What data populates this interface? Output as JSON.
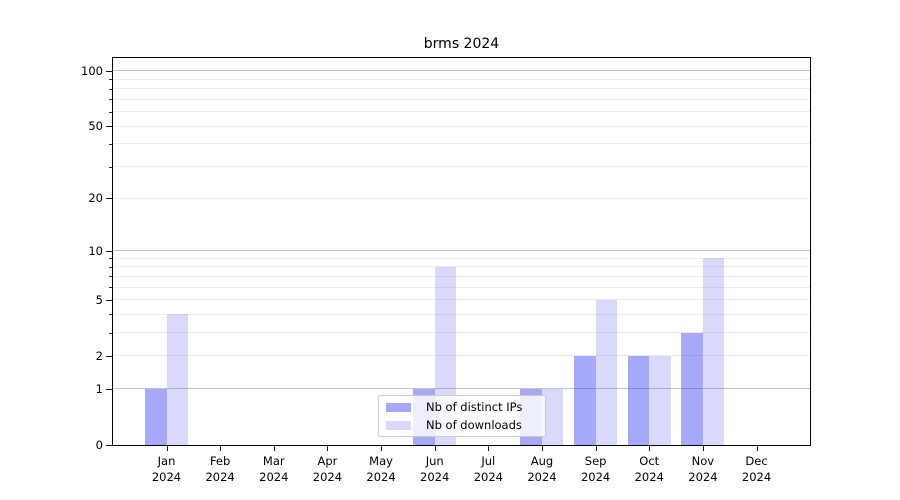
{
  "figure": {
    "background": "#ffffff"
  },
  "chart_data": {
    "type": "bar",
    "title": "brms 2024",
    "categories": [
      "Jan",
      "Feb",
      "Mar",
      "Apr",
      "May",
      "Jun",
      "Jul",
      "Aug",
      "Sep",
      "Oct",
      "Nov",
      "Dec"
    ],
    "category_year": "2024",
    "series": [
      {
        "name": "Nb of distinct IPs",
        "color": "rgba(70,75,238,0.48)",
        "values": [
          1,
          0,
          0,
          0,
          0,
          1,
          0,
          1,
          2,
          2,
          3,
          0
        ]
      },
      {
        "name": "Nb of downloads",
        "color": "rgba(70,75,238,0.21)",
        "values": [
          4,
          0,
          0,
          0,
          0,
          8,
          0,
          1,
          5,
          2,
          9,
          0
        ]
      }
    ],
    "xlabel": "",
    "ylabel": "",
    "y_axis": {
      "scale": "log1p",
      "tick_labels": [
        0,
        1,
        2,
        5,
        10,
        20,
        50,
        100
      ],
      "minor_ticks": [
        3,
        4,
        6,
        7,
        8,
        9,
        30,
        40,
        60,
        70,
        80,
        90
      ],
      "major_gridlines": [
        1,
        10,
        100
      ],
      "minor_gridlines": [
        2,
        3,
        4,
        5,
        6,
        7,
        8,
        9,
        20,
        30,
        40,
        50,
        60,
        70,
        80,
        90
      ],
      "ylim": [
        0,
        117
      ]
    },
    "legend": {
      "position": "lower center",
      "entries": [
        "Nb of distinct IPs",
        "Nb of downloads"
      ]
    },
    "grid": true,
    "colors": {
      "major_gridline": "#c4c4c4",
      "minor_gridline": "#ececec",
      "spine": "#000000",
      "text": "#000000"
    }
  }
}
